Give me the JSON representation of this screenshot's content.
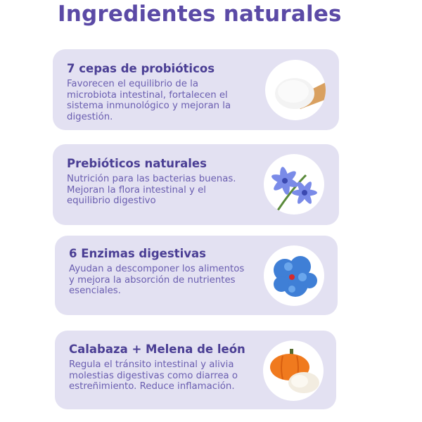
{
  "title": "Ingredientes naturales",
  "cards": [
    {
      "heading": "7 cepas de probióticos",
      "lines": [
        "Favorecen el equilibrio de la",
        "microbiota intestinal, fortalecen el",
        "sistema inmunológico y mejoran la",
        "digestión."
      ],
      "image_icon": "powder-spoon-icon"
    },
    {
      "heading": "Prebióticos naturales",
      "lines": [
        "Nutrición para las bacterias buenas.",
        "Mejoran la flora intestinal y el",
        "equilibrio digestivo"
      ],
      "image_icon": "chicory-flower-icon"
    },
    {
      "heading": "6 Enzimas digestivas",
      "lines": [
        "Ayudan a descomponer los alimentos",
        "y mejora la absorción de nutrientes",
        "esenciales."
      ],
      "image_icon": "enzyme-molecule-icon"
    },
    {
      "heading": "Calabaza + Melena de león",
      "lines": [
        "Regula el tránsito intestinal y alivia",
        "molestias digestivas como diarrea o",
        "estreñimiento. Reduce inflamación."
      ],
      "image_icon": "pumpkin-mushroom-icon"
    }
  ],
  "colors": {
    "title": "#5b4aa6",
    "card_bg": "#e3e1f2",
    "heading": "#4a3e94",
    "body": "#6a5eb0"
  }
}
